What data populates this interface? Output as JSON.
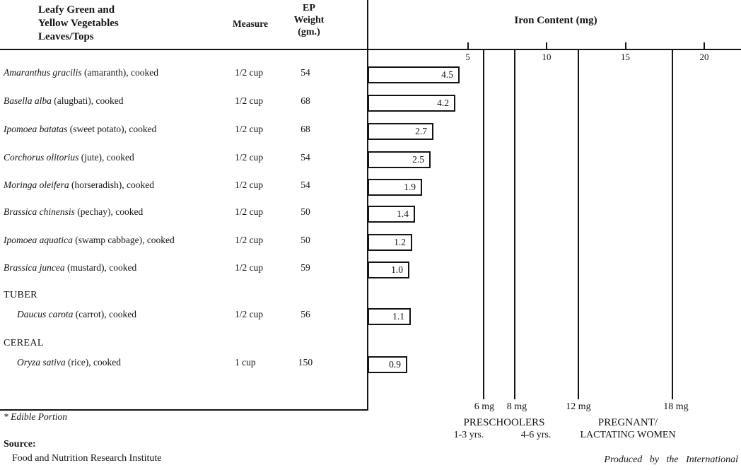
{
  "header": {
    "col1_lines": [
      "Leafy Green and",
      "Yellow Vegetables",
      "Leaves/Tops"
    ],
    "measure_label": "Measure",
    "ep_weight_lines": [
      "EP",
      "Weight",
      "(gm.)"
    ],
    "chart_title": "Iron Content (mg)"
  },
  "table": {
    "rows": [
      {
        "type": "item",
        "species": "Amaranthus gracilis",
        "rest": " (amaranth), cooked",
        "measure": "1/2 cup",
        "weight": "54",
        "iron": "4.5"
      },
      {
        "type": "item",
        "species": "Basella alba",
        "rest": " (alugbati), cooked",
        "measure": "1/2 cup",
        "weight": "68",
        "iron": "4.2"
      },
      {
        "type": "item",
        "species": "Ipomoea batatas",
        "rest": " (sweet potato), cooked",
        "measure": "1/2 cup",
        "weight": "68",
        "iron": "2.7"
      },
      {
        "type": "item",
        "species": "Corchorus olitorius",
        "rest": " (jute), cooked",
        "measure": "1/2 cup",
        "weight": "54",
        "iron": "2.5"
      },
      {
        "type": "item",
        "species": "Moringa oleifera",
        "rest": " (horseradish), cooked",
        "measure": "1/2 cup",
        "weight": "54",
        "iron": "1.9"
      },
      {
        "type": "item",
        "species": "Brassica chinensis",
        "rest": " (pechay), cooked",
        "measure": "1/2 cup",
        "weight": "50",
        "iron": "1.4"
      },
      {
        "type": "item",
        "species": "Ipomoea aquatica",
        "rest": " (swamp cabbage), cooked",
        "measure": "1/2 cup",
        "weight": "50",
        "iron": "1.2"
      },
      {
        "type": "item",
        "species": "Brassica juncea",
        "rest": " (mustard), cooked",
        "measure": "1/2 cup",
        "weight": "59",
        "iron": "1.0"
      },
      {
        "type": "section",
        "label": "TUBER"
      },
      {
        "type": "item",
        "indent": true,
        "species": "Daucus carota",
        "rest": " (carrot), cooked",
        "measure": "1/2 cup",
        "weight": "56",
        "iron": "1.1"
      },
      {
        "type": "section",
        "label": "CEREAL"
      },
      {
        "type": "item",
        "indent": true,
        "species": "Oryza sativa",
        "rest": " (rice), cooked",
        "measure": "1 cup",
        "weight": "150",
        "iron": "0.9"
      }
    ]
  },
  "axis": {
    "ticks": [
      "5",
      "10",
      "15",
      "20"
    ]
  },
  "reference_lines": [
    {
      "mg": 6,
      "label": "6 mg"
    },
    {
      "mg": 8,
      "label": "8 mg"
    },
    {
      "mg": 12,
      "label": "12 mg"
    },
    {
      "mg": 18,
      "label": "18 mg"
    }
  ],
  "groups": [
    {
      "title": "PRESCHOOLERS",
      "subs": [
        "1-3 yrs.",
        "4-6 yrs."
      ]
    },
    {
      "title": "PREGNANT/",
      "subs": [
        "LACTATING WOMEN"
      ]
    }
  ],
  "footer": {
    "footnote": "* Edible Portion",
    "source_label": "Source:",
    "source_name": "Food and Nutrition Research Institute",
    "produced_by": "Produced by the International"
  },
  "chart_data": {
    "type": "bar",
    "orientation": "horizontal",
    "title": "Iron Content (mg)",
    "categories": [
      "Amaranthus gracilis (amaranth), cooked",
      "Basella alba (alugbati), cooked",
      "Ipomoea batatas (sweet potato), cooked",
      "Corchorus olitorius (jute), cooked",
      "Moringa oleifera (horseradish), cooked",
      "Brassica chinensis (pechay), cooked",
      "Ipomoea aquatica (swamp cabbage), cooked",
      "Brassica juncea (mustard), cooked",
      "Daucus carota (carrot), cooked",
      "Oryza sativa (rice), cooked"
    ],
    "values": [
      4.5,
      4.2,
      2.7,
      2.5,
      1.9,
      1.4,
      1.2,
      1.0,
      1.1,
      0.9
    ],
    "measures": [
      "1/2 cup",
      "1/2 cup",
      "1/2 cup",
      "1/2 cup",
      "1/2 cup",
      "1/2 cup",
      "1/2 cup",
      "1/2 cup",
      "1/2 cup",
      "1 cup"
    ],
    "ep_weights_gm": [
      54,
      68,
      68,
      54,
      54,
      50,
      50,
      59,
      56,
      150
    ],
    "xlabel": "Iron Content (mg)",
    "x_ticks": [
      5,
      10,
      15,
      20
    ],
    "xlim": [
      0,
      22.5
    ],
    "grid": false,
    "legend": false,
    "reference_lines": [
      {
        "x": 6,
        "label": "6 mg",
        "group": "PRESCHOOLERS 1-3 yrs."
      },
      {
        "x": 8,
        "label": "8 mg",
        "group": "PRESCHOOLERS 4-6 yrs."
      },
      {
        "x": 12,
        "label": "12 mg",
        "group": "PREGNANT/LACTATING WOMEN"
      },
      {
        "x": 18,
        "label": "18 mg",
        "group": "PREGNANT/LACTATING WOMEN"
      }
    ]
  }
}
